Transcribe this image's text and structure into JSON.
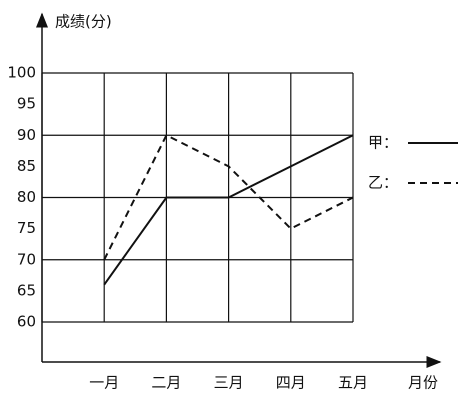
{
  "chart_data": {
    "type": "line",
    "y_label": "成绩(分)",
    "x_label": "月份",
    "categories": [
      "一月",
      "二月",
      "三月",
      "四月",
      "五月"
    ],
    "series": [
      {
        "name": "甲：",
        "color": "#111111",
        "dash": "solid",
        "values": [
          66,
          80,
          80,
          85,
          90
        ]
      },
      {
        "name": "乙：",
        "color": "#111111",
        "dash": "dashed",
        "values": [
          70,
          90,
          85,
          75,
          80
        ]
      }
    ],
    "ylim": [
      60,
      100
    ],
    "yticks": [
      60,
      65,
      70,
      75,
      80,
      85,
      90,
      95,
      100
    ],
    "grid": true
  }
}
